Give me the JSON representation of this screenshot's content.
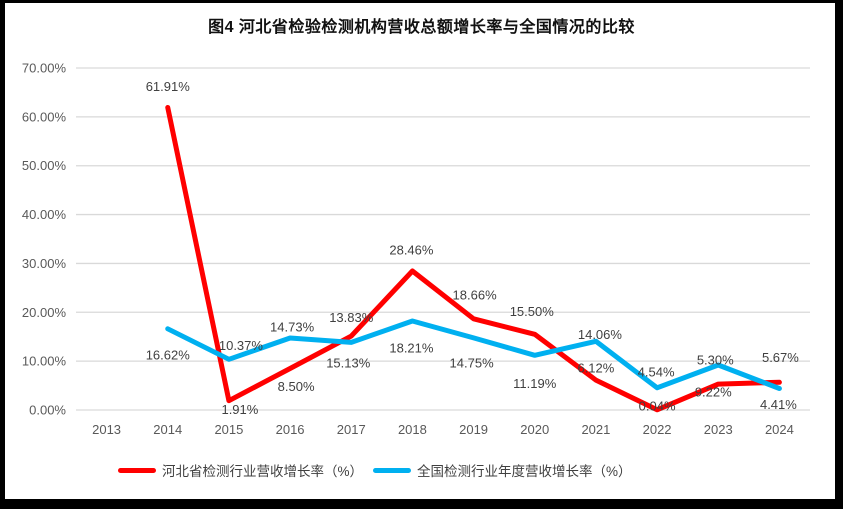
{
  "window": {
    "frame_color": "#000000",
    "background": "#ffffff"
  },
  "title": "图4  河北省检验检测机构营收总额增长率与全国情况的比较",
  "chart_data": {
    "type": "line",
    "title": "图4  河北省检验检测机构营收总额增长率与全国情况的比较",
    "categories": [
      "2013",
      "2014",
      "2015",
      "2016",
      "2017",
      "2018",
      "2019",
      "2020",
      "2021",
      "2022",
      "2023",
      "2024"
    ],
    "ylim": [
      0,
      70
    ],
    "ytick_step": 10,
    "ytick_labels": [
      "0.00%",
      "10.00%",
      "20.00%",
      "30.00%",
      "40.00%",
      "50.00%",
      "60.00%",
      "70.00%"
    ],
    "grid": true,
    "gridline_color": "#d9d9d9",
    "legend_position": "bottom",
    "series": [
      {
        "name": "河北省检测行业营收增长率（%）",
        "color": "#FF0000",
        "values": [
          null,
          61.91,
          1.91,
          8.5,
          15.13,
          28.46,
          18.66,
          15.5,
          6.12,
          0.04,
          5.3,
          5.67
        ],
        "data_labels": [
          null,
          "61.91%",
          "1.91%",
          "8.50%",
          "15.13%",
          "28.46%",
          "18.66%",
          "15.50%",
          "6.12%",
          "0.04%",
          "5.30%",
          "5.67%"
        ],
        "label_offsets": [
          null,
          [
            0,
            -21
          ],
          [
            11,
            9
          ],
          [
            6,
            18
          ],
          [
            -3,
            27
          ],
          [
            -1,
            -21
          ],
          [
            1,
            -24
          ],
          [
            -3,
            -23
          ],
          [
            0,
            -12
          ],
          [
            0,
            -4
          ],
          [
            -3,
            -24
          ],
          [
            1,
            -25
          ]
        ]
      },
      {
        "name": "全国检测行业年度营收增长率（%）",
        "color": "#00B0F0",
        "values": [
          null,
          16.62,
          10.37,
          14.73,
          13.83,
          18.21,
          14.75,
          11.19,
          14.06,
          4.54,
          9.22,
          4.41
        ],
        "data_labels": [
          null,
          "16.62%",
          "10.37%",
          "14.73%",
          "13.83%",
          "18.21%",
          "14.75%",
          "11.19%",
          "14.06%",
          "4.54%",
          "9.22%",
          "4.41%"
        ],
        "label_offsets": [
          null,
          [
            0,
            26
          ],
          [
            12,
            -14
          ],
          [
            2,
            -11
          ],
          [
            0,
            -25
          ],
          [
            -1,
            27
          ],
          [
            -2,
            25
          ],
          [
            0,
            28
          ],
          [
            4,
            -7
          ],
          [
            -1,
            -16
          ],
          [
            -5,
            27
          ],
          [
            -1,
            16
          ]
        ]
      }
    ]
  }
}
